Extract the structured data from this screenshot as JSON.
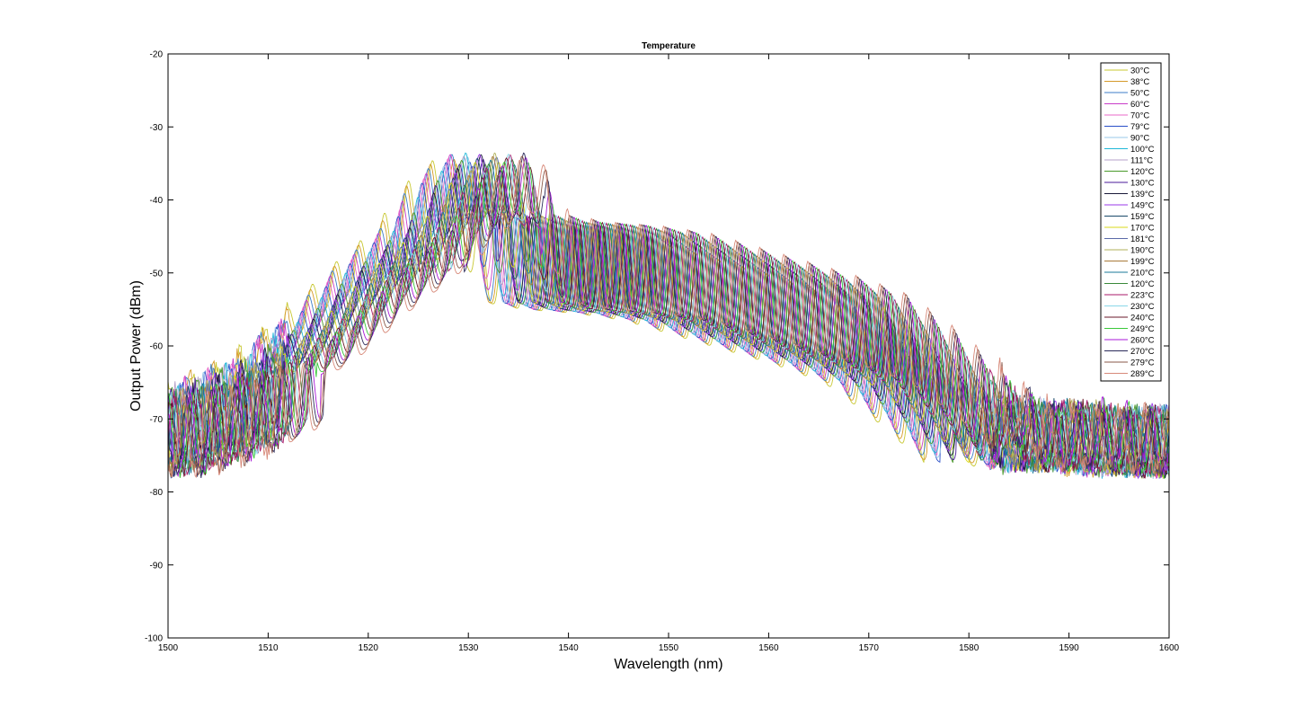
{
  "chart_data": {
    "type": "line",
    "title": "Temperature",
    "xlabel": "Wavelength (nm)",
    "ylabel": "Output Power (dBm)",
    "xlim": [
      1500,
      1600
    ],
    "ylim": [
      -100,
      -20
    ],
    "x_ticks": [
      1500,
      1510,
      1520,
      1530,
      1540,
      1550,
      1560,
      1570,
      1580,
      1590,
      1600
    ],
    "x_tick_labels": [
      "1500",
      "1510",
      "1520",
      "1530",
      "1540",
      "1550",
      "1560",
      "1570",
      "1580",
      "1590",
      "1600"
    ],
    "y_ticks": [
      -100,
      -90,
      -80,
      -70,
      -60,
      -50,
      -40,
      -30,
      -20
    ],
    "y_tick_labels": [
      "-100",
      "-90",
      "-80",
      "-70",
      "-60",
      "-50",
      "-40",
      "-30",
      "-20"
    ],
    "grid": false,
    "legend_position": "top-right",
    "envelope": {
      "x": [
        1500,
        1505,
        1510,
        1515,
        1520,
        1525,
        1528,
        1530,
        1532,
        1534,
        1536,
        1540,
        1545,
        1550,
        1555,
        1560,
        1565,
        1570,
        1575,
        1580,
        1585,
        1590,
        1595,
        1600
      ],
      "y": [
        -67,
        -65,
        -62,
        -57,
        -50,
        -44,
        -38,
        -35.5,
        -33.5,
        -36,
        -42,
        -43,
        -43.5,
        -44.5,
        -46.5,
        -48.5,
        -50.5,
        -53,
        -58,
        -64,
        -68.5,
        -68,
        -69,
        -69
      ]
    },
    "series": [
      {
        "name": "30°C",
        "color": "#c8c832"
      },
      {
        "name": "38°C",
        "color": "#d59a2a"
      },
      {
        "name": "50°C",
        "color": "#3d7dc8"
      },
      {
        "name": "60°C",
        "color": "#c83cc8"
      },
      {
        "name": "70°C",
        "color": "#e86ac8"
      },
      {
        "name": "79°C",
        "color": "#2a4fc8"
      },
      {
        "name": "90°C",
        "color": "#9ac8e8"
      },
      {
        "name": "100°C",
        "color": "#1fb8d8"
      },
      {
        "name": "111°C",
        "color": "#b4a0c8"
      },
      {
        "name": "120°C",
        "color": "#4a9a2a"
      },
      {
        "name": "130°C",
        "color": "#4a1a9a"
      },
      {
        "name": "139°C",
        "color": "#1a1a3a"
      },
      {
        "name": "149°C",
        "color": "#9a3ae8"
      },
      {
        "name": "159°C",
        "color": "#1a4a6a"
      },
      {
        "name": "170°C",
        "color": "#d8d81a"
      },
      {
        "name": "181°C",
        "color": "#5a6aa8"
      },
      {
        "name": "190°C",
        "color": "#b0b05a"
      },
      {
        "name": "199°C",
        "color": "#a87a3a"
      },
      {
        "name": "210°C",
        "color": "#1a7a9a"
      },
      {
        "name": "120°C",
        "color": "#3a8a3a"
      },
      {
        "name": "223°C",
        "color": "#a81a6a"
      },
      {
        "name": "230°C",
        "color": "#8ad8e8"
      },
      {
        "name": "240°C",
        "color": "#6a1a2a"
      },
      {
        "name": "249°C",
        "color": "#3ac83a"
      },
      {
        "name": "260°C",
        "color": "#a81ad8"
      },
      {
        "name": "270°C",
        "color": "#2a2a5a"
      },
      {
        "name": "279°C",
        "color": "#8a5a4a"
      },
      {
        "name": "289°C",
        "color": "#d88a7a"
      }
    ]
  }
}
